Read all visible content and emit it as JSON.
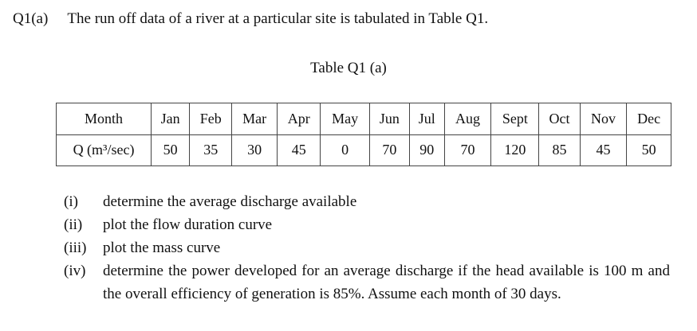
{
  "question": {
    "number": "Q1(a)",
    "text": "The run off data of a river at a particular site is tabulated in Table Q1."
  },
  "table": {
    "caption": "Table Q1 (a)",
    "row_headers": [
      "Month",
      "Q (m³/sec)"
    ],
    "months": [
      "Jan",
      "Feb",
      "Mar",
      "Apr",
      "May",
      "Jun",
      "Jul",
      "Aug",
      "Sept",
      "Oct",
      "Nov",
      "Dec"
    ],
    "discharge": [
      "50",
      "35",
      "30",
      "45",
      "0",
      "70",
      "90",
      "70",
      "120",
      "85",
      "45",
      "50"
    ]
  },
  "items": [
    {
      "label": "(i)",
      "text": "determine the average discharge available"
    },
    {
      "label": "(ii)",
      "text": "plot the flow duration curve"
    },
    {
      "label": "(iii)",
      "text": "plot the mass curve"
    },
    {
      "label": "(iv)",
      "text": "determine the power developed for an average discharge if the head available is 100 m and the overall efficiency of generation is 85%. Assume each month of 30 days."
    }
  ]
}
